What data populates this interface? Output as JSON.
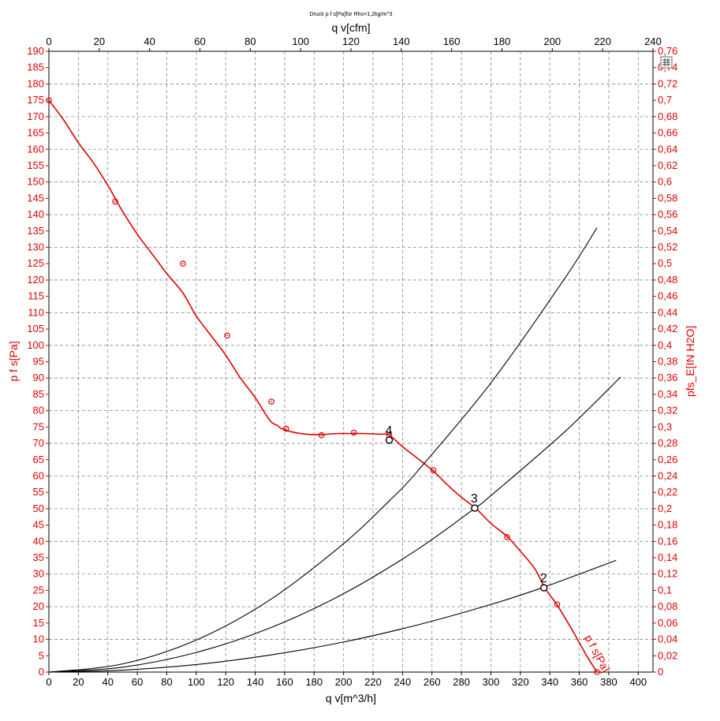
{
  "chart_data": {
    "type": "line",
    "title": "Druck p f s[Pa]für Rho=1,2kg/m^3",
    "xlabel": "q v[m^3/h]",
    "x2label": "q v[cfm]",
    "ylabel": "p f s[Pa]",
    "y2label": "pfs_E[IN H2O]",
    "xlim": [
      0,
      410
    ],
    "x2lim": [
      0,
      240
    ],
    "ylim": [
      0,
      190
    ],
    "y2lim": [
      0,
      0.76
    ],
    "x_ticks": [
      0,
      20,
      40,
      60,
      80,
      100,
      120,
      140,
      160,
      180,
      200,
      220,
      240,
      260,
      280,
      300,
      320,
      340,
      360,
      380,
      400
    ],
    "x2_ticks": [
      0,
      20,
      40,
      60,
      80,
      100,
      120,
      140,
      160,
      180,
      200,
      220,
      240
    ],
    "y_ticks": [
      0,
      5,
      10,
      15,
      20,
      25,
      30,
      35,
      40,
      45,
      50,
      55,
      60,
      65,
      70,
      75,
      80,
      85,
      90,
      95,
      100,
      105,
      110,
      115,
      120,
      125,
      130,
      135,
      140,
      145,
      150,
      155,
      160,
      165,
      170,
      175,
      180,
      185,
      190
    ],
    "y2_ticks": [
      "0",
      "0,02",
      "0,04",
      "0,06",
      "0,08",
      "0,1",
      "0,12",
      "0,14",
      "0,16",
      "0,18",
      "0,2",
      "0,22",
      "0,24",
      "0,26",
      "0,28",
      "0,3",
      "0,32",
      "0,34",
      "0,36",
      "0,38",
      "0,4",
      "0,42",
      "0,44",
      "0,46",
      "0,48",
      "0,5",
      "0,52",
      "0,54",
      "0,56",
      "0,58",
      "0,6",
      "0,62",
      "0,64",
      "0,66",
      "0,68",
      "0,7",
      "0,72",
      "0,74",
      "0,76"
    ],
    "grid": true,
    "series": [
      {
        "name": "p f s[Pa]",
        "color": "#e00000",
        "x": [
          0,
          10,
          20,
          30,
          40,
          45,
          50,
          60,
          70,
          80,
          91,
          100,
          110,
          120,
          130,
          140,
          150,
          155,
          158,
          165,
          175,
          185,
          195,
          205,
          215,
          225,
          231,
          240,
          250,
          261,
          270,
          280,
          290,
          300,
          311,
          320,
          330,
          337,
          345,
          355,
          365,
          372
        ],
        "y": [
          175,
          169,
          162,
          156,
          149,
          145,
          141,
          134,
          128,
          122,
          116,
          109,
          103,
          97,
          90,
          84,
          77,
          75.5,
          74.5,
          73.5,
          72.8,
          72.7,
          73,
          73,
          73,
          72.8,
          72.5,
          69,
          65.5,
          61.5,
          57.5,
          53.5,
          50,
          45.5,
          41.5,
          37,
          31.5,
          25.5,
          20.5,
          13,
          5,
          0
        ],
        "markers_x": [
          0,
          45,
          91,
          121,
          151,
          161,
          185,
          207,
          231,
          261,
          311,
          345,
          372
        ],
        "markers_y": [
          175,
          144,
          125,
          103,
          82.8,
          74.5,
          72.5,
          73.3,
          72.5,
          61.8,
          41.3,
          20.7,
          0
        ]
      },
      {
        "color": "#000000",
        "x": [
          0,
          50,
          100,
          150,
          200,
          231,
          250,
          300,
          350,
          372
        ],
        "y": [
          0,
          2.5,
          9.8,
          22.1,
          39.3,
          52.4,
          61.4,
          88.5,
          120.4,
          136
        ]
      },
      {
        "color": "#000000",
        "x": [
          0,
          50,
          100,
          150,
          200,
          250,
          289,
          300,
          350,
          388
        ],
        "y": [
          0,
          1.5,
          6,
          13.5,
          24,
          37.5,
          50.1,
          54,
          73.5,
          90.3
        ]
      },
      {
        "color": "#000000",
        "x": [
          0,
          50,
          100,
          150,
          200,
          250,
          300,
          336,
          385
        ],
        "y": [
          0,
          0.6,
          2.3,
          5.2,
          9.2,
          14.4,
          20.7,
          26,
          34.2
        ]
      }
    ],
    "operating_points": [
      {
        "label": "2",
        "x": 336,
        "y": 25.8
      },
      {
        "label": "3",
        "x": 289,
        "y": 50.2
      },
      {
        "label": "4",
        "x": 231,
        "y": 71
      }
    ],
    "series_label": "p f s[Pa]"
  }
}
